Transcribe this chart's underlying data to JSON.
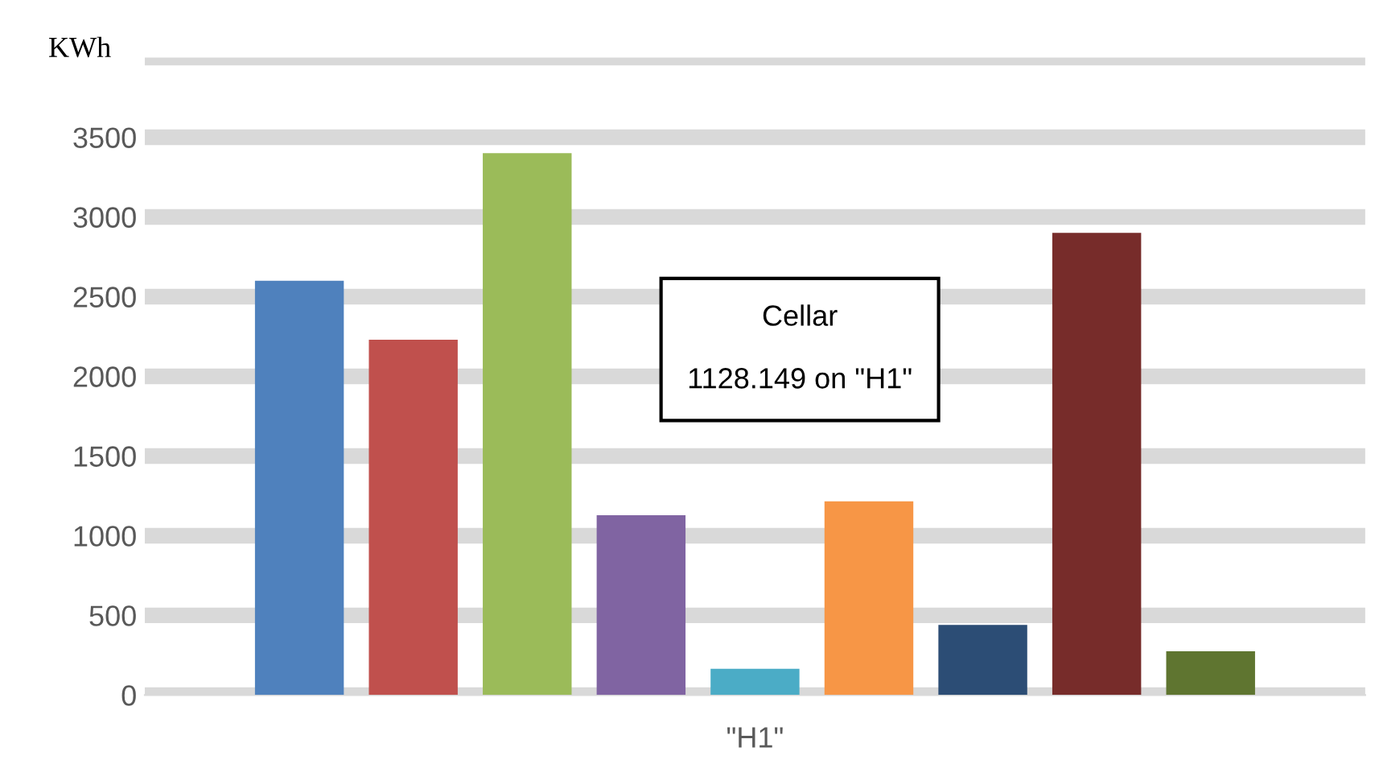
{
  "chart_data": {
    "type": "bar",
    "ylabel": "KWh",
    "categories": [
      "\"H1\""
    ],
    "series": [
      {
        "color": "#4f81bd",
        "values": [
          2600
        ]
      },
      {
        "color": "#c0504d",
        "values": [
          2230
        ]
      },
      {
        "color": "#9bbb59",
        "values": [
          3400
        ]
      },
      {
        "color": "#8064a2",
        "values": [
          1128.149
        ]
      },
      {
        "color": "#4bacc6",
        "values": [
          165
        ]
      },
      {
        "color": "#f79646",
        "values": [
          1215
        ]
      },
      {
        "color": "#2c4d75",
        "values": [
          440
        ]
      },
      {
        "color": "#772c2a",
        "values": [
          2900
        ]
      },
      {
        "color": "#5f7530",
        "values": [
          275
        ]
      }
    ],
    "ylim": [
      0,
      4000
    ],
    "yticks": [
      0,
      500,
      1000,
      1500,
      2000,
      2500,
      3000,
      3500,
      {
        "value": 4000,
        "label": null
      }
    ],
    "grid": "y",
    "legend": false,
    "annotations": [
      "Cellar",
      "1128.149 on \"H1\""
    ]
  }
}
